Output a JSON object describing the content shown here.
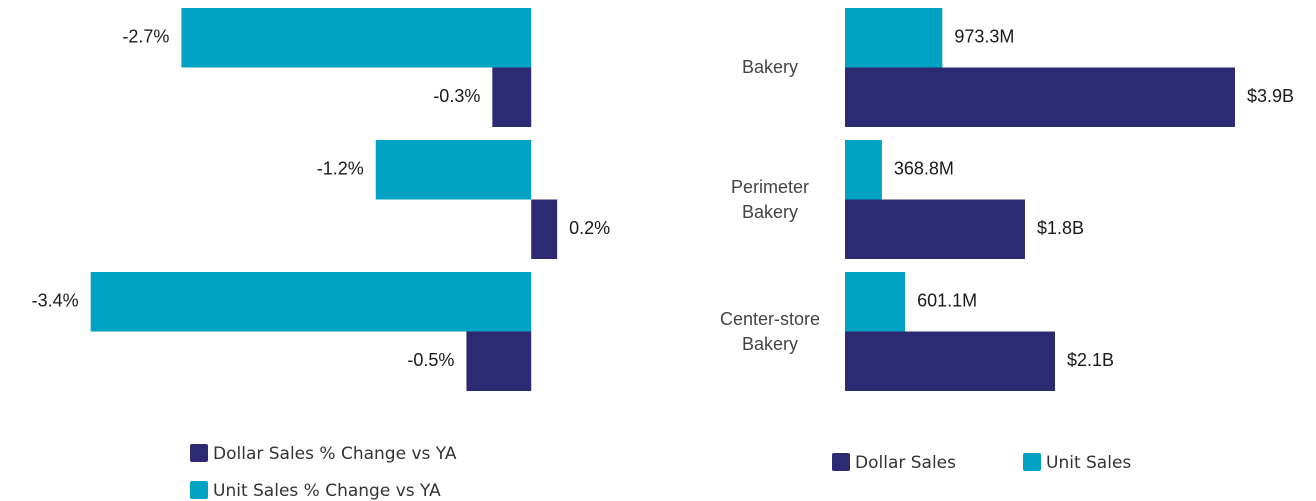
{
  "chart_data": [
    {
      "type": "bar",
      "orientation": "horizontal",
      "categories": [
        null,
        null,
        null
      ],
      "series": [
        {
          "name": "Dollar Sales % Change vs YA",
          "color": "#2b2a72",
          "values": [
            -0.3,
            0.2,
            -0.5
          ],
          "value_labels": [
            "-0.3%",
            "0.2%",
            "-0.5%"
          ]
        },
        {
          "name": "Unit Sales % Change vs YA",
          "color": "#00a3c4",
          "values": [
            -2.7,
            -1.2,
            -3.4
          ],
          "value_labels": [
            "-2.7%",
            "-1.2%",
            "-3.4%"
          ]
        }
      ],
      "xlim": [
        -4.1,
        0.5
      ]
    },
    {
      "type": "bar",
      "orientation": "horizontal",
      "categories": [
        "Bakery",
        "Perimeter Bakery",
        "Center-store Bakery"
      ],
      "series": [
        {
          "name": "Dollar Sales",
          "color": "#2b2a72",
          "values": [
            3900000000,
            1800000000,
            2100000000
          ],
          "value_labels": [
            "$3.9B",
            "$1.8B",
            "$2.1B"
          ]
        },
        {
          "name": "Unit Sales",
          "color": "#00a3c4",
          "values": [
            973300000,
            368800000,
            601100000
          ],
          "value_labels": [
            "973.3M",
            "368.8M",
            "601.1M"
          ]
        }
      ],
      "xlim": [
        0,
        4500000000
      ]
    }
  ]
}
